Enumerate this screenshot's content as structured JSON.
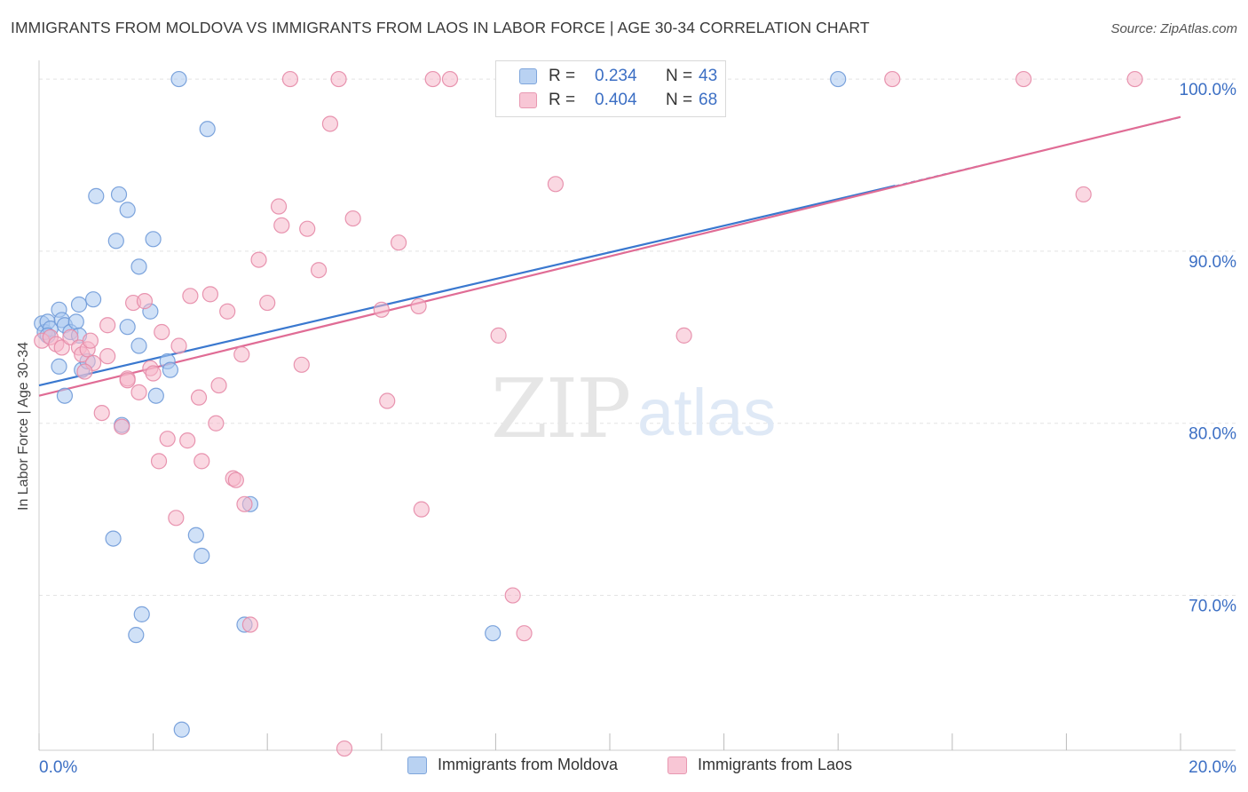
{
  "header": {
    "title": "IMMIGRANTS FROM MOLDOVA VS IMMIGRANTS FROM LAOS IN LABOR FORCE | AGE 30-34 CORRELATION CHART",
    "source": "Source: ZipAtlas.com"
  },
  "watermark": {
    "zip": "ZIP",
    "atlas": "atlas"
  },
  "legend_top": {
    "rows": [
      {
        "r_label": "R =",
        "r_value": "0.234",
        "n_label": "N =",
        "n_value": "43"
      },
      {
        "r_label": "R =",
        "r_value": "0.404",
        "n_label": "N =",
        "n_value": "68"
      }
    ]
  },
  "colors": {
    "moldova_fill": "#a9c8f0",
    "moldova_stroke": "#6f9ad8",
    "moldova_line": "#3a78cf",
    "laos_fill": "#f5b8cb",
    "laos_stroke": "#e58aa7",
    "laos_line": "#e06c95",
    "value_text": "#3c6fc4"
  },
  "chart_data": {
    "type": "scatter",
    "title": "IMMIGRANTS FROM MOLDOVA VS IMMIGRANTS FROM LAOS IN LABOR FORCE | AGE 30-34 CORRELATION CHART",
    "ylabel": "In Labor Force | Age 30-34",
    "xlim": [
      0,
      20
    ],
    "ylim": [
      61,
      101.5
    ],
    "x_tick_labels": [
      "0.0%",
      "20.0%"
    ],
    "y_ticks": [
      70,
      80,
      90,
      100
    ],
    "y_tick_labels": [
      "70.0%",
      "80.0%",
      "90.0%",
      "100.0%"
    ],
    "grid": true,
    "legend_placement": "top-center and bottom",
    "series": [
      {
        "name": "Immigrants from Moldova",
        "r": 0.234,
        "n": 43,
        "trend": {
          "x": [
            0,
            15
          ],
          "y": [
            82.2,
            93.8
          ]
        },
        "points": [
          {
            "x": 0.05,
            "y": 85.8
          },
          {
            "x": 0.1,
            "y": 85.3
          },
          {
            "x": 0.15,
            "y": 85.9
          },
          {
            "x": 0.2,
            "y": 85.5
          },
          {
            "x": 0.15,
            "y": 85.1
          },
          {
            "x": 0.35,
            "y": 86.6
          },
          {
            "x": 0.4,
            "y": 86.0
          },
          {
            "x": 0.45,
            "y": 85.7
          },
          {
            "x": 0.55,
            "y": 85.3
          },
          {
            "x": 0.65,
            "y": 85.9
          },
          {
            "x": 0.7,
            "y": 85.1
          },
          {
            "x": 0.7,
            "y": 86.9
          },
          {
            "x": 0.35,
            "y": 83.3
          },
          {
            "x": 0.75,
            "y": 83.1
          },
          {
            "x": 0.45,
            "y": 81.6
          },
          {
            "x": 0.85,
            "y": 83.6
          },
          {
            "x": 0.95,
            "y": 87.2
          },
          {
            "x": 1.0,
            "y": 93.2
          },
          {
            "x": 1.4,
            "y": 93.3
          },
          {
            "x": 1.55,
            "y": 92.4
          },
          {
            "x": 1.35,
            "y": 90.6
          },
          {
            "x": 2.0,
            "y": 90.7
          },
          {
            "x": 1.75,
            "y": 89.1
          },
          {
            "x": 1.95,
            "y": 86.5
          },
          {
            "x": 1.55,
            "y": 85.6
          },
          {
            "x": 1.75,
            "y": 84.5
          },
          {
            "x": 2.25,
            "y": 83.6
          },
          {
            "x": 2.3,
            "y": 83.1
          },
          {
            "x": 2.05,
            "y": 81.6
          },
          {
            "x": 1.45,
            "y": 79.9
          },
          {
            "x": 1.3,
            "y": 73.3
          },
          {
            "x": 1.8,
            "y": 68.9
          },
          {
            "x": 1.7,
            "y": 67.7
          },
          {
            "x": 2.45,
            "y": 100.0
          },
          {
            "x": 2.95,
            "y": 97.1
          },
          {
            "x": 2.75,
            "y": 73.5
          },
          {
            "x": 2.85,
            "y": 72.3
          },
          {
            "x": 3.7,
            "y": 75.3
          },
          {
            "x": 3.6,
            "y": 68.3
          },
          {
            "x": 2.5,
            "y": 62.2
          },
          {
            "x": 7.95,
            "y": 67.8
          },
          {
            "x": 14.0,
            "y": 100.0
          },
          {
            "x": 9.9,
            "y": 100.0
          }
        ]
      },
      {
        "name": "Immigrants from Laos",
        "r": 0.404,
        "n": 68,
        "trend": {
          "x": [
            0,
            20
          ],
          "y": [
            81.6,
            97.8
          ]
        },
        "points": [
          {
            "x": 0.05,
            "y": 84.8
          },
          {
            "x": 0.2,
            "y": 85.0
          },
          {
            "x": 0.3,
            "y": 84.6
          },
          {
            "x": 0.4,
            "y": 84.4
          },
          {
            "x": 0.55,
            "y": 85.0
          },
          {
            "x": 0.7,
            "y": 84.4
          },
          {
            "x": 0.75,
            "y": 84.0
          },
          {
            "x": 0.85,
            "y": 84.3
          },
          {
            "x": 0.95,
            "y": 83.5
          },
          {
            "x": 0.8,
            "y": 83.0
          },
          {
            "x": 1.2,
            "y": 85.7
          },
          {
            "x": 1.55,
            "y": 82.6
          },
          {
            "x": 1.65,
            "y": 87.0
          },
          {
            "x": 1.75,
            "y": 81.8
          },
          {
            "x": 1.85,
            "y": 87.1
          },
          {
            "x": 1.95,
            "y": 83.2
          },
          {
            "x": 2.0,
            "y": 82.9
          },
          {
            "x": 2.15,
            "y": 85.3
          },
          {
            "x": 2.1,
            "y": 77.8
          },
          {
            "x": 2.25,
            "y": 79.1
          },
          {
            "x": 2.4,
            "y": 74.5
          },
          {
            "x": 2.45,
            "y": 84.5
          },
          {
            "x": 2.6,
            "y": 79.0
          },
          {
            "x": 2.65,
            "y": 87.4
          },
          {
            "x": 2.8,
            "y": 81.5
          },
          {
            "x": 2.85,
            "y": 77.8
          },
          {
            "x": 3.0,
            "y": 87.5
          },
          {
            "x": 3.1,
            "y": 80.0
          },
          {
            "x": 3.15,
            "y": 82.2
          },
          {
            "x": 3.3,
            "y": 86.5
          },
          {
            "x": 3.4,
            "y": 76.8
          },
          {
            "x": 3.45,
            "y": 76.7
          },
          {
            "x": 3.55,
            "y": 84.0
          },
          {
            "x": 3.6,
            "y": 75.3
          },
          {
            "x": 3.7,
            "y": 68.3
          },
          {
            "x": 3.85,
            "y": 89.5
          },
          {
            "x": 4.0,
            "y": 87.0
          },
          {
            "x": 4.2,
            "y": 92.6
          },
          {
            "x": 4.25,
            "y": 91.5
          },
          {
            "x": 4.4,
            "y": 100.0
          },
          {
            "x": 4.6,
            "y": 83.4
          },
          {
            "x": 4.7,
            "y": 91.3
          },
          {
            "x": 4.9,
            "y": 88.9
          },
          {
            "x": 5.1,
            "y": 97.4
          },
          {
            "x": 5.25,
            "y": 100.0
          },
          {
            "x": 5.35,
            "y": 61.1
          },
          {
            "x": 5.5,
            "y": 91.9
          },
          {
            "x": 6.0,
            "y": 86.6
          },
          {
            "x": 6.1,
            "y": 81.3
          },
          {
            "x": 6.3,
            "y": 90.5
          },
          {
            "x": 6.65,
            "y": 86.8
          },
          {
            "x": 6.7,
            "y": 75.0
          },
          {
            "x": 6.9,
            "y": 100.0
          },
          {
            "x": 7.2,
            "y": 100.0
          },
          {
            "x": 8.05,
            "y": 85.1
          },
          {
            "x": 8.3,
            "y": 70.0
          },
          {
            "x": 8.5,
            "y": 67.8
          },
          {
            "x": 9.05,
            "y": 93.9
          },
          {
            "x": 11.3,
            "y": 85.1
          },
          {
            "x": 14.95,
            "y": 100.0
          },
          {
            "x": 18.3,
            "y": 93.3
          },
          {
            "x": 17.25,
            "y": 100.0
          },
          {
            "x": 19.2,
            "y": 100.0
          },
          {
            "x": 1.1,
            "y": 80.6
          },
          {
            "x": 1.45,
            "y": 79.8
          },
          {
            "x": 1.55,
            "y": 82.5
          },
          {
            "x": 0.9,
            "y": 84.8
          },
          {
            "x": 1.2,
            "y": 83.9
          }
        ]
      }
    ]
  }
}
